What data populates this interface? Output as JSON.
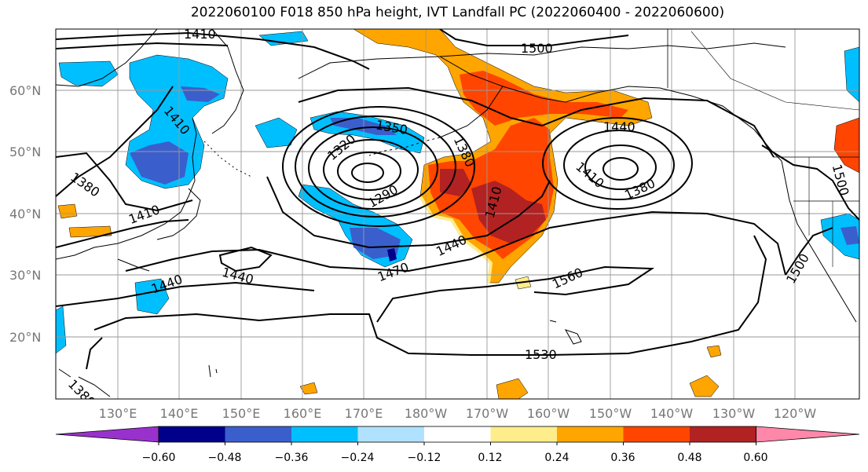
{
  "title": "2022060100 F018 850 hPa height, IVT Landfall PC (2022060400 - 2022060600)",
  "lat_labels": [
    "60°N",
    "50°N",
    "40°N",
    "30°N",
    "20°N"
  ],
  "lon_labels": [
    "130°E",
    "140°E",
    "150°E",
    "160°E",
    "170°E",
    "180°W",
    "170°W",
    "160°W",
    "150°W",
    "140°W",
    "130°W",
    "120°W"
  ],
  "contour_labels": {
    "c1410_top": "1410",
    "c1500_top": "1500",
    "c1410_left": "1410",
    "c1380_left": "1380",
    "c1410_mid": "1410",
    "c1350": "1350",
    "c1320": "1320",
    "c1290": "1290",
    "c1380_center": "1380",
    "c1410_center": "1410",
    "c1440_center": "1440",
    "c1440_right": "1440",
    "c1410_right": "1410",
    "c1380_right": "1380",
    "c1470": "1470",
    "c1440_low1": "1440",
    "c1440_low2": "1440",
    "c1560": "1560",
    "c1530": "1530",
    "c1500_right": "1500",
    "c1500_edge": "1500",
    "c1380_bottom": "1380"
  },
  "colorbar": {
    "ticks": [
      "−0.60",
      "−0.48",
      "−0.36",
      "−0.24",
      "−0.12",
      "0.12",
      "0.24",
      "0.36",
      "0.48",
      "0.60"
    ],
    "colors": [
      "#9932cc",
      "#00008b",
      "#3a5fcd",
      "#00bfff",
      "#b0e2ff",
      "#ffffff",
      "#ffec8b",
      "#ffa500",
      "#ff4500",
      "#b22222",
      "#ff88aa"
    ]
  },
  "colors": {
    "strong_positive": "#b22222",
    "positive": "#ff4500",
    "moderate_positive": "#ffa500",
    "weak_positive": "#ffec8b",
    "weak_negative": "#b0e2ff",
    "negative": "#00bfff",
    "strong_negative": "#3a5fcd",
    "very_strong_negative": "#00008b"
  }
}
